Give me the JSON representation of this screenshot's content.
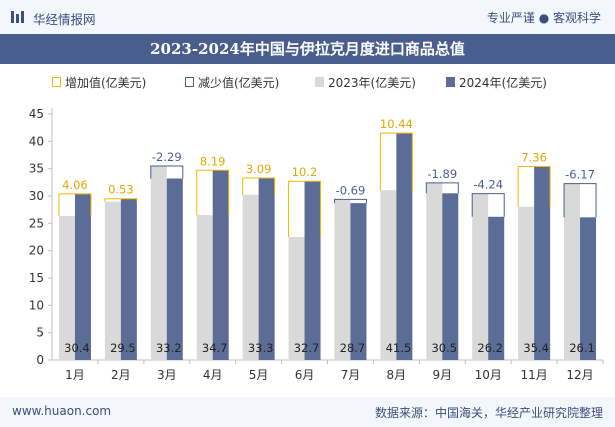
{
  "header": {
    "brand": "华经情报网",
    "slogan": "专业严谨 ● 客观科学"
  },
  "footer": {
    "site": "www.huaon.com",
    "source": "数据来源：中国海关，华经产业研究院整理"
  },
  "chart_data": {
    "type": "bar",
    "title": "2023-2024年中国与伊拉克月度进口商品总值",
    "categories": [
      "1月",
      "2月",
      "3月",
      "4月",
      "5月",
      "6月",
      "7月",
      "8月",
      "9月",
      "10月",
      "11月",
      "12月"
    ],
    "series": [
      {
        "name": "2023年(亿美元)",
        "color": "#d9d9d9",
        "values": [
          26.34,
          28.97,
          35.49,
          26.51,
          30.21,
          22.5,
          29.39,
          31.06,
          32.39,
          30.44,
          28.04,
          32.27
        ]
      },
      {
        "name": "2024年(亿美元)",
        "color": "#5b6c96",
        "values": [
          30.4,
          29.5,
          33.2,
          34.7,
          33.3,
          32.7,
          28.7,
          41.5,
          30.5,
          26.2,
          35.4,
          26.1
        ]
      }
    ],
    "value_labels": [
      "30.4",
      "29.5",
      "33.2",
      "34.7",
      "33.3",
      "32.7",
      "28.7",
      "41.5",
      "30.5",
      "26.2",
      "35.4",
      "26.1"
    ],
    "changes": {
      "values": [
        4.06,
        0.53,
        -2.29,
        8.19,
        3.09,
        10.2,
        -0.69,
        10.44,
        -1.89,
        -4.24,
        7.36,
        -6.17
      ],
      "labels": [
        "4.06",
        "0.53",
        "-2.29",
        "8.19",
        "3.09",
        "10.2",
        "-0.69",
        "10.44",
        "-1.89",
        "-4.24",
        "7.36",
        "-6.17"
      ],
      "increase_name": "增加值(亿美元)",
      "decrease_name": "减少值(亿美元)",
      "increase_color": "#f5b800",
      "decrease_color": "#4a5e8e"
    },
    "ylim": [
      0,
      45
    ],
    "yticks": [
      "0",
      "5",
      "10",
      "15",
      "20",
      "25",
      "30",
      "35",
      "40",
      "45"
    ],
    "grid": false,
    "legend_position": "top-left"
  }
}
